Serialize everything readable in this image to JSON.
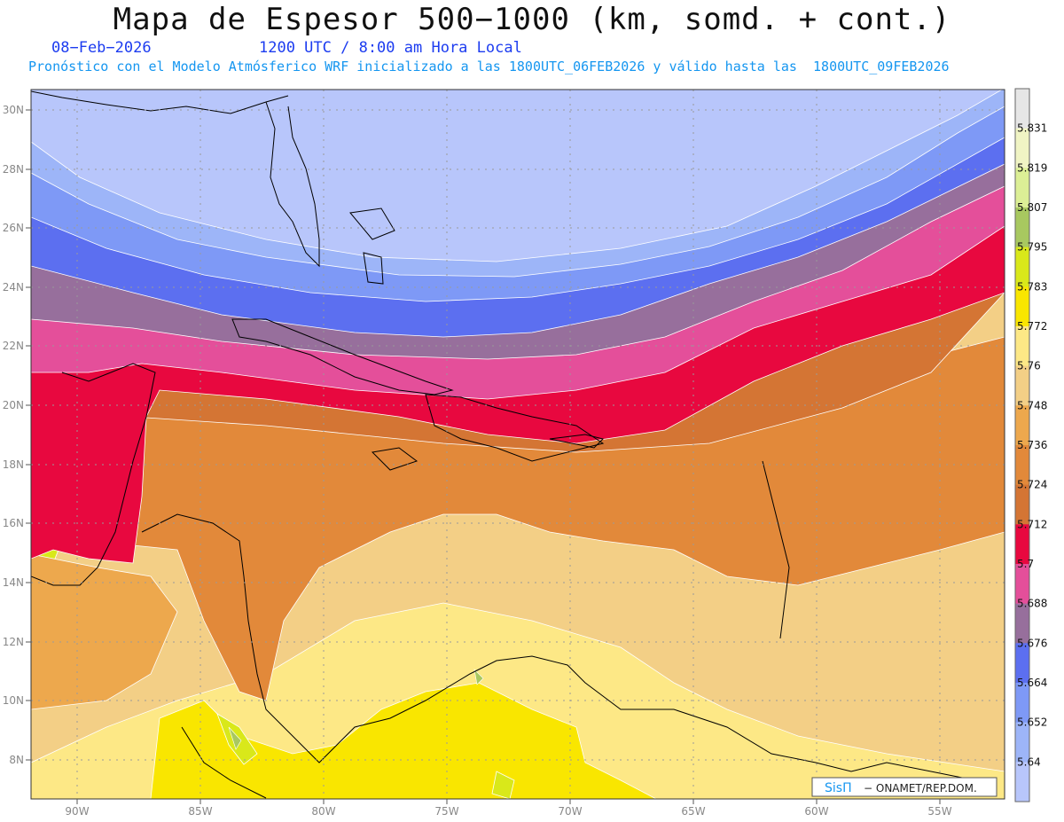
{
  "header": {
    "title": "Mapa de Espesor 500−1000 (km, somd. + cont.)",
    "date": "08−Feb−2026",
    "time": "1200 UTC / 8:00 am Hora Local",
    "forecast_info": "Pronóstico con el Modelo Atmósferico WRF inicializado a las 1800UTC_06FEB2026 y válido hasta las  1800UTC_09FEB2026"
  },
  "map": {
    "lat_labels": [
      "30N",
      "28N",
      "26N",
      "24N",
      "22N",
      "20N",
      "18N",
      "16N",
      "14N",
      "12N",
      "10N",
      "8N"
    ],
    "lon_labels": [
      "90W",
      "85W",
      "80W",
      "75W",
      "70W",
      "65W",
      "60W",
      "55W"
    ]
  },
  "colorbar": {
    "labels": [
      "5.831",
      "5.819",
      "5.807",
      "5.795",
      "5.783",
      "5.772",
      "5.76",
      "5.748",
      "5.736",
      "5.724",
      "5.712",
      "5.7",
      "5.688",
      "5.676",
      "5.664",
      "5.652",
      "5.64"
    ],
    "colors": [
      "#e6e6e6",
      "#f0f4c4",
      "#dcef96",
      "#a8c860",
      "#d9e81a",
      "#f9e600",
      "#fde886",
      "#f3cf86",
      "#eda84d",
      "#e2893a",
      "#d47534",
      "#e8083f",
      "#e44f9a",
      "#976f9c",
      "#5c6ff0",
      "#7e99f6",
      "#9db5f8",
      "#b8c6fb"
    ]
  },
  "credit": {
    "logo": "SisΠ",
    "text": "− ONAMET/REP.DOM."
  }
}
